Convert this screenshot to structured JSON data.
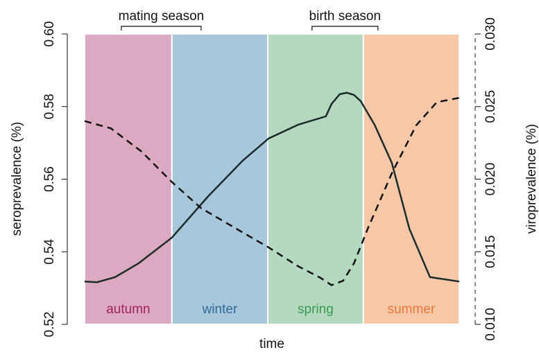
{
  "chart_data": {
    "type": "line",
    "xlabel": "time",
    "ylabel": "seroprevalence (%)",
    "y2label": "viroprevalence (%)",
    "xlim": [
      0,
      100
    ],
    "ylim": [
      0.52,
      0.6
    ],
    "yticks": [
      0.52,
      0.54,
      0.56,
      0.58,
      {
        "value": 0.6,
        "label": "0.60"
      }
    ],
    "y2lim": [
      0.01,
      0.03
    ],
    "y2ticks": [
      {
        "value": 0.01,
        "label": "0.010"
      },
      0.015,
      {
        "value": 0.02,
        "label": "0.020"
      },
      0.025,
      {
        "value": 0.03,
        "label": "0.030"
      }
    ],
    "regions": [
      {
        "label": "autumn",
        "start": 0,
        "end": 23.3,
        "color": "#dba9c1",
        "text_color": "#a0245a"
      },
      {
        "label": "winter",
        "start": 23.3,
        "end": 48.9,
        "color": "#a9c7da",
        "text_color": "#2f6a9a"
      },
      {
        "label": "spring",
        "start": 48.9,
        "end": 74.4,
        "color": "#b4d8c0",
        "text_color": "#3a9a4e"
      },
      {
        "label": "summer",
        "start": 74.4,
        "end": 100,
        "color": "#f6c8a8",
        "text_color": "#e8773a"
      }
    ],
    "annotations": [
      {
        "text": "mating season",
        "start": 9.8,
        "end": 31.1
      },
      {
        "text": "birth season",
        "start": 60.7,
        "end": 78.3
      }
    ],
    "series": [
      {
        "name": "seroprevalence",
        "color": "#1a2a2a",
        "dash": false,
        "x": [
          0,
          3.3,
          8.1,
          14.4,
          23.3,
          33,
          42.2,
          49.1,
          57,
          64.4,
          65.9,
          68.1,
          70,
          71.9,
          73.7,
          77.4,
          82,
          86.7,
          92.2,
          100
        ],
        "values": [
          0.5318,
          0.5316,
          0.533,
          0.5368,
          0.5439,
          0.5553,
          0.5651,
          0.5712,
          0.575,
          0.5773,
          0.5807,
          0.5834,
          0.5838,
          0.5832,
          0.5815,
          0.575,
          0.5645,
          0.5463,
          0.533,
          0.5318
        ]
      },
      {
        "name": "viroprevalence",
        "color": "#111111",
        "dash": true,
        "axis": "y2",
        "x": [
          0,
          7,
          15.2,
          23.3,
          31.1,
          40.4,
          49.1,
          57,
          63,
          65.9,
          69,
          71.9,
          75.6,
          82,
          88.5,
          94,
          100
        ],
        "values": [
          0.024,
          0.0235,
          0.0219,
          0.0198,
          0.018,
          0.0166,
          0.0153,
          0.014,
          0.0132,
          0.0127,
          0.013,
          0.0142,
          0.0166,
          0.0204,
          0.0237,
          0.0253,
          0.0256
        ]
      }
    ]
  }
}
